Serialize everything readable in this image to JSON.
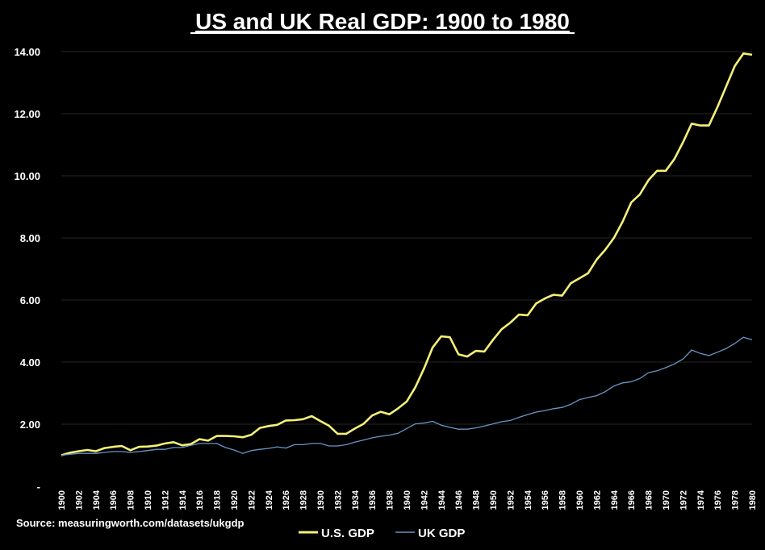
{
  "chart_data": {
    "type": "line",
    "title": "US and UK Real GDP: 1900 to 1980",
    "source": "Source: measuringworth.com/datasets/ukgdp",
    "xlabel": "",
    "ylabel": "",
    "ylim": [
      0,
      14
    ],
    "yticks": [
      0,
      2,
      4,
      6,
      8,
      10,
      12,
      14
    ],
    "ytick_labels": [
      "-",
      "2.00",
      "4.00",
      "6.00",
      "8.00",
      "10.00",
      "12.00",
      "14.00"
    ],
    "x": [
      1900,
      1901,
      1902,
      1903,
      1904,
      1905,
      1906,
      1907,
      1908,
      1909,
      1910,
      1911,
      1912,
      1913,
      1914,
      1915,
      1916,
      1917,
      1918,
      1919,
      1920,
      1921,
      1922,
      1923,
      1924,
      1925,
      1926,
      1927,
      1928,
      1929,
      1930,
      1931,
      1932,
      1933,
      1934,
      1935,
      1936,
      1937,
      1938,
      1939,
      1940,
      1941,
      1942,
      1943,
      1944,
      1945,
      1946,
      1947,
      1948,
      1949,
      1950,
      1951,
      1952,
      1953,
      1954,
      1955,
      1956,
      1957,
      1958,
      1959,
      1960,
      1961,
      1962,
      1963,
      1964,
      1965,
      1966,
      1967,
      1968,
      1969,
      1970,
      1971,
      1972,
      1973,
      1974,
      1975,
      1976,
      1977,
      1978,
      1979,
      1980
    ],
    "xtick_labels": [
      "1900",
      "1902",
      "1904",
      "1906",
      "1908",
      "1910",
      "1912",
      "1914",
      "1916",
      "1918",
      "1920",
      "1922",
      "1924",
      "1926",
      "1928",
      "1930",
      "1932",
      "1934",
      "1936",
      "1938",
      "1940",
      "1942",
      "1944",
      "1946",
      "1948",
      "1950",
      "1952",
      "1954",
      "1956",
      "1958",
      "1960",
      "1962",
      "1964",
      "1966",
      "1968",
      "1970",
      "1972",
      "1974",
      "1976",
      "1978",
      "1980"
    ],
    "grid": true,
    "legend_position": "bottom-center",
    "series": [
      {
        "name": "U.S. GDP",
        "color": "#f5f077",
        "values": [
          1.0,
          1.08,
          1.13,
          1.17,
          1.13,
          1.23,
          1.27,
          1.3,
          1.16,
          1.27,
          1.28,
          1.31,
          1.38,
          1.42,
          1.32,
          1.36,
          1.52,
          1.47,
          1.62,
          1.62,
          1.61,
          1.58,
          1.66,
          1.88,
          1.94,
          1.98,
          2.12,
          2.13,
          2.16,
          2.26,
          2.1,
          1.95,
          1.69,
          1.69,
          1.86,
          2.01,
          2.28,
          2.4,
          2.32,
          2.51,
          2.73,
          3.19,
          3.79,
          4.47,
          4.83,
          4.8,
          4.25,
          4.18,
          4.36,
          4.34,
          4.72,
          5.06,
          5.27,
          5.53,
          5.51,
          5.89,
          6.05,
          6.17,
          6.14,
          6.54,
          6.7,
          6.86,
          7.3,
          7.62,
          8.0,
          8.52,
          9.14,
          9.4,
          9.86,
          10.16,
          10.16,
          10.54,
          11.08,
          11.68,
          11.62,
          11.62,
          12.22,
          12.88,
          13.54,
          13.94,
          13.9
        ]
      },
      {
        "name": "UK GDP",
        "color": "#6a96c6",
        "values": [
          1.0,
          1.03,
          1.06,
          1.06,
          1.06,
          1.09,
          1.12,
          1.12,
          1.09,
          1.12,
          1.15,
          1.19,
          1.19,
          1.25,
          1.25,
          1.32,
          1.38,
          1.38,
          1.38,
          1.25,
          1.17,
          1.06,
          1.15,
          1.19,
          1.22,
          1.27,
          1.23,
          1.34,
          1.34,
          1.38,
          1.38,
          1.3,
          1.3,
          1.34,
          1.42,
          1.49,
          1.56,
          1.61,
          1.65,
          1.71,
          1.86,
          2.01,
          2.04,
          2.09,
          1.97,
          1.9,
          1.84,
          1.84,
          1.88,
          1.94,
          2.01,
          2.08,
          2.12,
          2.22,
          2.31,
          2.39,
          2.44,
          2.5,
          2.54,
          2.64,
          2.79,
          2.86,
          2.92,
          3.05,
          3.23,
          3.33,
          3.37,
          3.47,
          3.66,
          3.72,
          3.82,
          3.94,
          4.1,
          4.39,
          4.28,
          4.21,
          4.32,
          4.44,
          4.6,
          4.8,
          4.72
        ]
      }
    ]
  }
}
